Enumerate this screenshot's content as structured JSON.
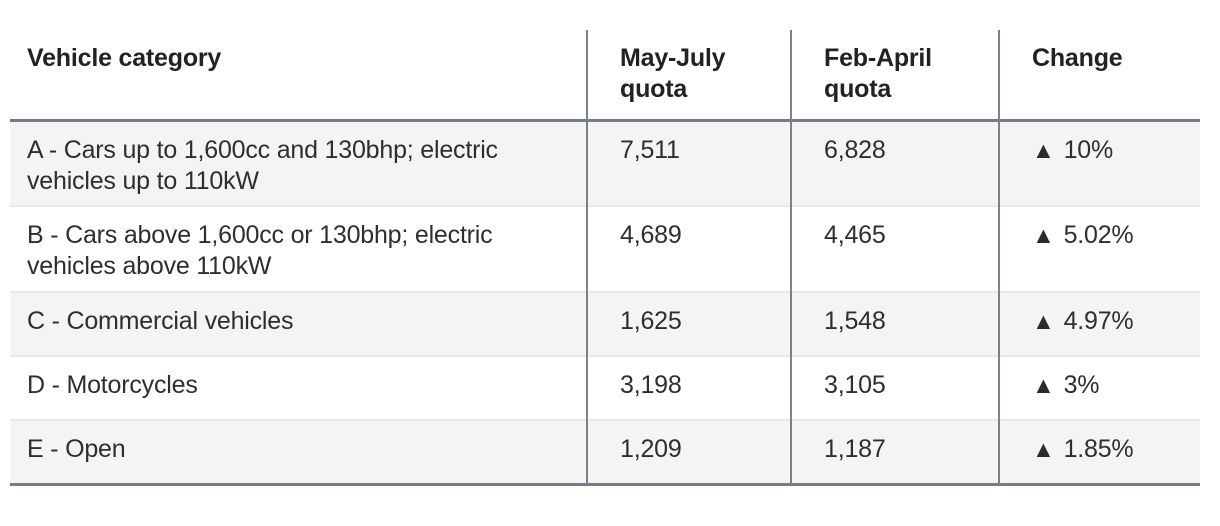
{
  "table": {
    "columns": [
      {
        "label": "Vehicle category"
      },
      {
        "label": "May-July quota"
      },
      {
        "label": "Feb-April quota"
      },
      {
        "label": "Change"
      }
    ],
    "rows": [
      {
        "category": "A - Cars up to 1,600cc and 130bhp; electric vehicles up to 110kW",
        "may_july": "7,511",
        "feb_april": "6,828",
        "change_arrow": "▲",
        "change_value": "10%"
      },
      {
        "category": "B - Cars above 1,600cc or 130bhp; electric vehicles above 110kW",
        "may_july": "4,689",
        "feb_april": "4,465",
        "change_arrow": "▲",
        "change_value": "5.02%"
      },
      {
        "category": "C - Commercial vehicles",
        "may_july": "1,625",
        "feb_april": "1,548",
        "change_arrow": "▲",
        "change_value": "4.97%"
      },
      {
        "category": "D - Motorcycles",
        "may_july": "3,198",
        "feb_april": "3,105",
        "change_arrow": "▲",
        "change_value": "3%"
      },
      {
        "category": "E - Open",
        "may_july": "1,209",
        "feb_april": "1,187",
        "change_arrow": "▲",
        "change_value": "1.85%"
      }
    ]
  },
  "colors": {
    "border_strong": "#747d87",
    "divider_vertical": "#7a828c",
    "row_separator": "#e9e9e9",
    "row_shaded_bg": "#f4f4f4",
    "header_text": "#222222",
    "body_text": "#2e2e2e"
  },
  "chart_data": {
    "type": "table",
    "title": "",
    "columns": [
      "Vehicle category",
      "May-July quota",
      "Feb-April quota",
      "Change"
    ],
    "rows": [
      [
        "A - Cars up to 1,600cc and 130bhp; electric vehicles up to 110kW",
        7511,
        6828,
        "+10%"
      ],
      [
        "B - Cars above 1,600cc or 130bhp; electric vehicles above 110kW",
        4689,
        4465,
        "+5.02%"
      ],
      [
        "C - Commercial vehicles",
        1625,
        1548,
        "+4.97%"
      ],
      [
        "D - Motorcycles",
        3198,
        3105,
        "+3%"
      ],
      [
        "E - Open",
        1209,
        1187,
        "+1.85%"
      ]
    ],
    "notes": "All changes are increases (black up-triangle indicators)"
  }
}
